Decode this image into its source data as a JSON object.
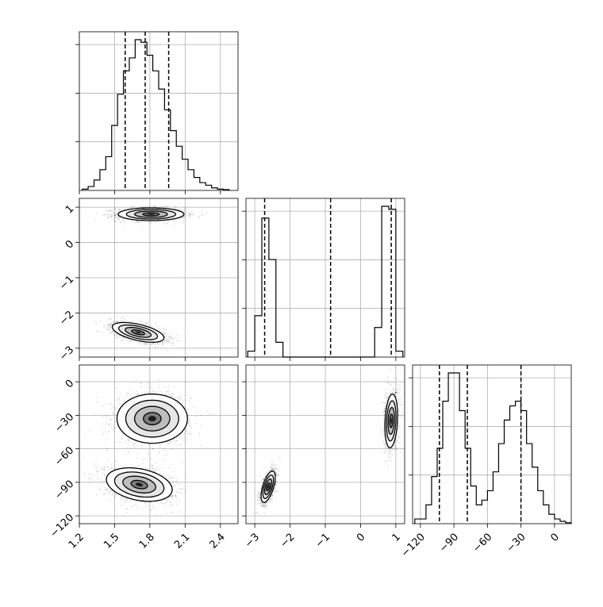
{
  "chart_data": {
    "type": "corner",
    "title": "",
    "grid": true,
    "parameters": [
      {
        "ticks": [
          1.2,
          1.5,
          1.8,
          2.1,
          2.4
        ],
        "tick_labels": [
          "1.2",
          "1.5",
          "1.8",
          "2.1",
          "2.4"
        ],
        "range": [
          1.2,
          2.55
        ]
      },
      {
        "ticks": [
          -3,
          -2,
          -1,
          0,
          1
        ],
        "tick_labels": [
          "−3",
          "−2",
          "−1",
          "0",
          "1"
        ],
        "range": [
          -3.25,
          1.25
        ]
      },
      {
        "ticks": [
          -120,
          -90,
          -60,
          -30,
          0
        ],
        "tick_labels": [
          "−120",
          "−90",
          "−60",
          "−30",
          "0"
        ],
        "range": [
          -127,
          15
        ]
      }
    ],
    "histograms": [
      {
        "param": 0,
        "bin_edges": [
          1.225,
          1.275,
          1.325,
          1.375,
          1.425,
          1.475,
          1.525,
          1.575,
          1.625,
          1.675,
          1.725,
          1.775,
          1.825,
          1.875,
          1.925,
          1.975,
          2.025,
          2.075,
          2.125,
          2.175,
          2.225,
          2.275,
          2.325,
          2.375,
          2.425,
          2.475
        ],
        "counts": [
          0.5,
          1.5,
          4,
          8,
          13,
          25,
          37,
          46,
          51,
          58,
          57,
          52,
          46,
          39,
          31,
          23,
          17,
          12,
          8,
          5,
          3,
          2,
          1,
          0.5,
          0.3
        ],
        "quantiles": [
          1.59,
          1.76,
          1.96
        ]
      },
      {
        "param": 1,
        "bin_edges": [
          -3.2,
          -3.0,
          -2.8,
          -2.6,
          -2.4,
          -2.2,
          -2.0,
          -1.8,
          -1.6,
          -1.4,
          -1.2,
          -1.0,
          -0.8,
          -0.6,
          -0.4,
          -0.2,
          0.0,
          0.2,
          0.4,
          0.6,
          0.8,
          1.0,
          1.2
        ],
        "counts": [
          2,
          14,
          47,
          33,
          5,
          0,
          0,
          0,
          0,
          0,
          0,
          0,
          0,
          0,
          0,
          0,
          0,
          0,
          10,
          51,
          50,
          2
        ],
        "quantiles": [
          -2.72,
          -0.85,
          0.87
        ]
      },
      {
        "param": 2,
        "bin_edges": [
          -125,
          -120,
          -115,
          -110,
          -105,
          -100,
          -95,
          -90,
          -85,
          -80,
          -75,
          -70,
          -65,
          -60,
          -55,
          -50,
          -45,
          -40,
          -35,
          -30,
          -25,
          -20,
          -15,
          -10,
          -5,
          0,
          5,
          10,
          15
        ],
        "counts": [
          1,
          1,
          4,
          10,
          16,
          26,
          32,
          32,
          24,
          16,
          8,
          4,
          5,
          7,
          11,
          17,
          22,
          25,
          26,
          24,
          17,
          12,
          7,
          4,
          2,
          1,
          0.5,
          0.2
        ],
        "quantiles": [
          -103,
          -78,
          -30
        ]
      }
    ],
    "joint_panels": [
      {
        "x": 0,
        "y": 1,
        "modes": [
          {
            "cx": 1.81,
            "cy": 0.8,
            "sx": 0.14,
            "sy": 0.09,
            "rho": 0
          },
          {
            "cx": 1.7,
            "cy": -2.55,
            "sx": 0.11,
            "sy": 0.14,
            "rho": -0.55
          }
        ]
      },
      {
        "x": 0,
        "y": 2,
        "modes": [
          {
            "cx": 1.82,
            "cy": -33,
            "sx": 0.15,
            "sy": 11,
            "rho": 0
          },
          {
            "cx": 1.71,
            "cy": -92,
            "sx": 0.14,
            "sy": 7.5,
            "rho": -0.3
          }
        ]
      },
      {
        "x": 1,
        "y": 2,
        "modes": [
          {
            "cx": 0.87,
            "cy": -35,
            "sx": 0.09,
            "sy": 12,
            "rho": 0.2
          },
          {
            "cx": -2.62,
            "cy": -94,
            "sx": 0.1,
            "sy": 7,
            "rho": 0.6
          }
        ]
      }
    ]
  }
}
